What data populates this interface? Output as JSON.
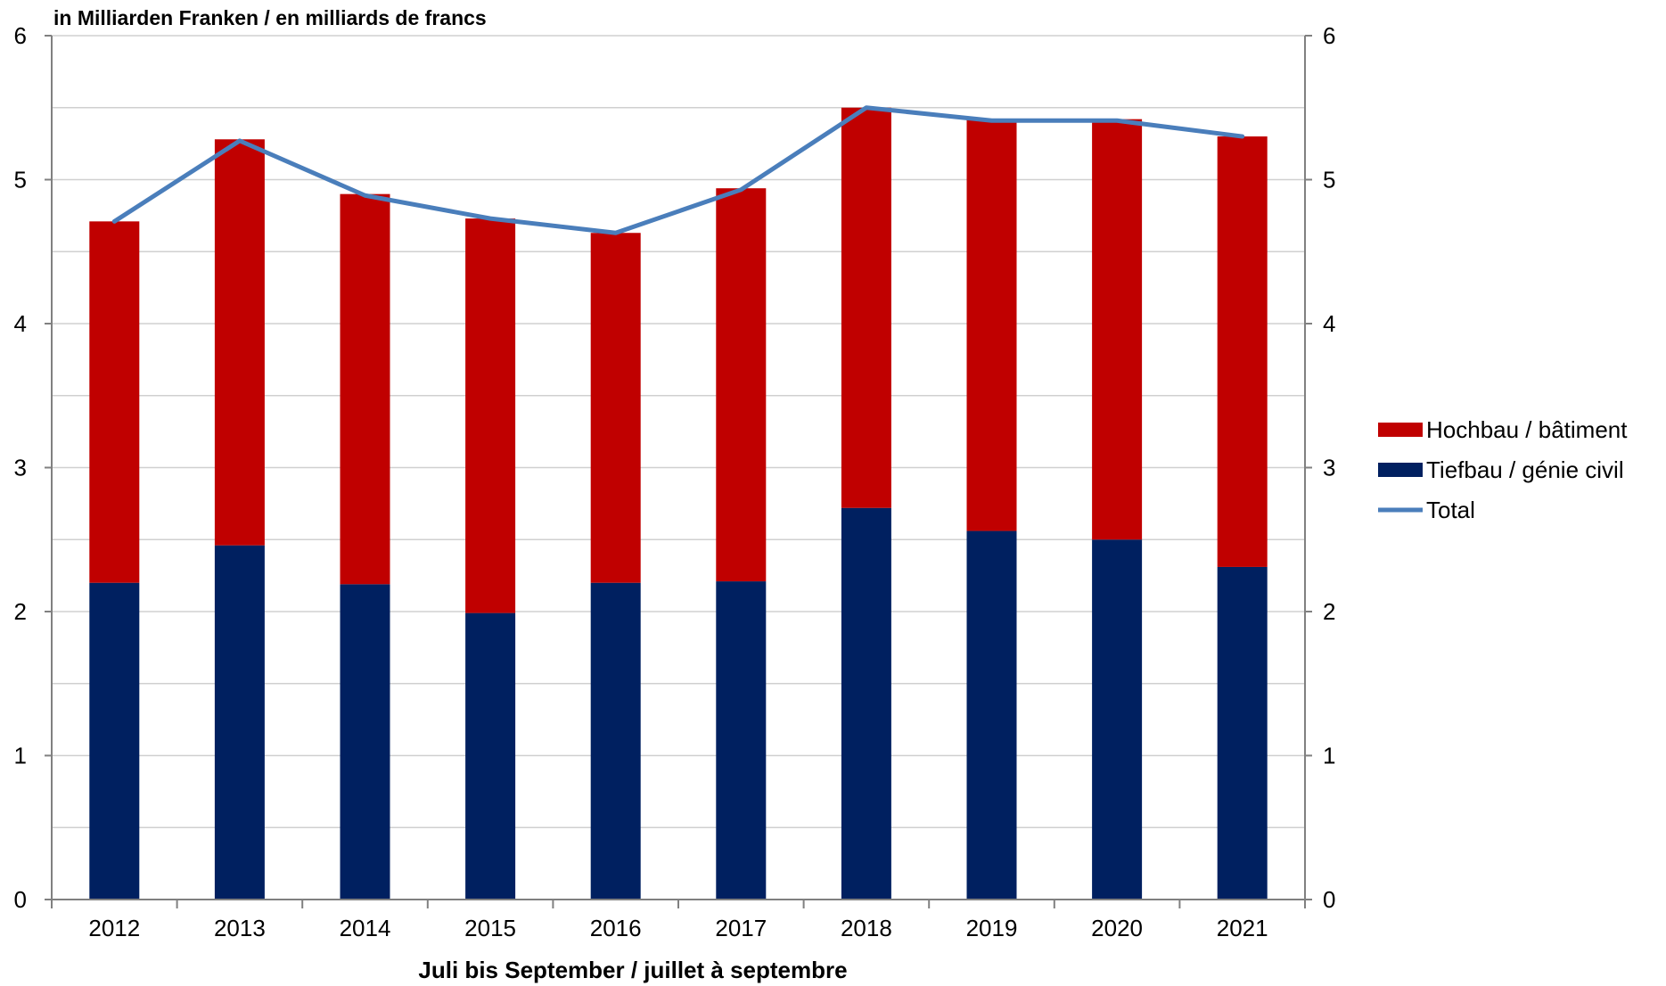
{
  "chart_data": {
    "type": "bar",
    "stacked": true,
    "ylabel": "in Milliarden Franken / en milliards de francs",
    "xlabel": "Juli bis September / juillet à septembre",
    "categories": [
      "2012",
      "2013",
      "2014",
      "2015",
      "2016",
      "2017",
      "2018",
      "2019",
      "2020",
      "2021"
    ],
    "series": [
      {
        "name": "Tiefbau / génie civil",
        "color": "#002060",
        "type": "bar",
        "values": [
          2.2,
          2.46,
          2.19,
          1.99,
          2.2,
          2.21,
          2.72,
          2.56,
          2.5,
          2.31
        ]
      },
      {
        "name": "Hochbau / bâtiment",
        "color": "#c00000",
        "type": "bar",
        "values": [
          2.51,
          2.82,
          2.71,
          2.74,
          2.43,
          2.73,
          2.78,
          2.86,
          2.92,
          2.99
        ]
      },
      {
        "name": "Total",
        "color": "#4a7ebb",
        "type": "line",
        "values": [
          4.71,
          5.27,
          4.89,
          4.73,
          4.63,
          4.93,
          5.5,
          5.41,
          5.41,
          5.3
        ]
      }
    ],
    "ylim": [
      0,
      6
    ],
    "yticks": [
      "0",
      "1",
      "2",
      "3",
      "4",
      "5",
      "6"
    ],
    "y2ticks": [
      "0",
      "1",
      "2",
      "3",
      "4",
      "5",
      "6"
    ],
    "grid": true,
    "legend_position": "right",
    "legend": [
      {
        "label": "Hochbau / bâtiment",
        "color": "#c00000",
        "marker": "bar"
      },
      {
        "label": "Tiefbau / génie civil",
        "color": "#002060",
        "marker": "bar"
      },
      {
        "label": "Total",
        "color": "#4a7ebb",
        "marker": "line"
      }
    ]
  }
}
